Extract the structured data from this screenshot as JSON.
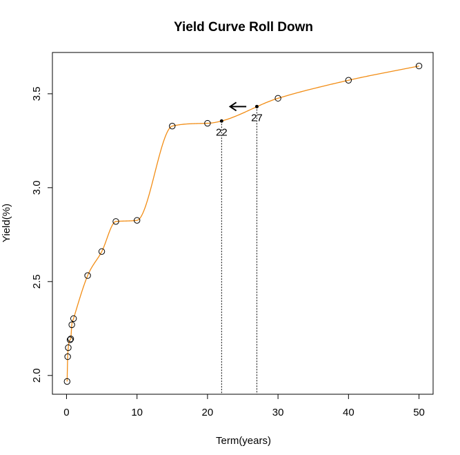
{
  "chart_data": {
    "type": "line",
    "title": "Yield Curve Roll Down",
    "xlabel": "Term(years)",
    "ylabel": "Yield(%)",
    "xlim": [
      -2,
      52
    ],
    "ylim": [
      1.9,
      3.72
    ],
    "x_ticks": [
      0,
      10,
      20,
      30,
      40,
      50
    ],
    "y_ticks": [
      2.0,
      2.5,
      3.0,
      3.5
    ],
    "x_tick_labels": [
      "0",
      "10",
      "20",
      "30",
      "40",
      "50"
    ],
    "y_tick_labels": [
      "2.0",
      "2.5",
      "3.0",
      "3.5"
    ],
    "grid": false,
    "line_color": "#f28c13",
    "points": [
      {
        "x": 0.0833,
        "y": 1.968
      },
      {
        "x": 0.1667,
        "y": 2.1
      },
      {
        "x": 0.25,
        "y": 2.148
      },
      {
        "x": 0.5,
        "y": 2.19
      },
      {
        "x": 0.6,
        "y": 2.195
      },
      {
        "x": 0.75,
        "y": 2.27
      },
      {
        "x": 1,
        "y": 2.303
      },
      {
        "x": 3,
        "y": 2.532
      },
      {
        "x": 5,
        "y": 2.66
      },
      {
        "x": 7,
        "y": 2.82
      },
      {
        "x": 10,
        "y": 2.826
      },
      {
        "x": 15,
        "y": 3.328
      },
      {
        "x": 20,
        "y": 3.343
      },
      {
        "x": 30,
        "y": 3.476
      },
      {
        "x": 40,
        "y": 3.572
      },
      {
        "x": 50,
        "y": 3.648
      }
    ],
    "highlight_points": [
      {
        "x": 22,
        "y": 3.355,
        "label": "22"
      },
      {
        "x": 27,
        "y": 3.432,
        "label": "27"
      }
    ],
    "arrow": {
      "from_x": 25.5,
      "to_x": 23.2,
      "y": 3.432
    }
  }
}
